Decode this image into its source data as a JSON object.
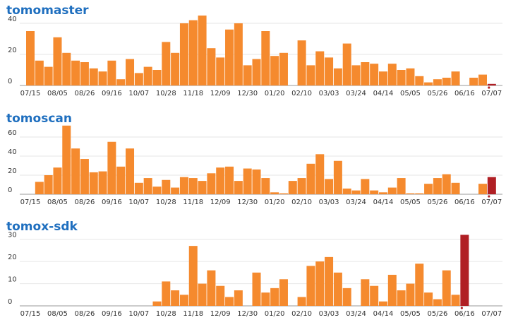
{
  "chart_data": [
    {
      "type": "bar",
      "title": "tomomaster",
      "categories": [
        "07/15",
        null,
        null,
        "08/05",
        null,
        null,
        "08/26",
        null,
        null,
        "09/16",
        null,
        null,
        "10/07",
        null,
        null,
        "10/28",
        null,
        null,
        "11/18",
        null,
        null,
        "12/09",
        null,
        null,
        "12/30",
        null,
        null,
        "01/20",
        null,
        null,
        "02/10",
        null,
        null,
        "03/03",
        null,
        null,
        "03/24",
        null,
        null,
        "04/14",
        null,
        null,
        "05/05",
        null,
        null,
        "05/26",
        null,
        null,
        "06/16",
        null,
        null,
        "07/07"
      ],
      "values": [
        35,
        16,
        12,
        31,
        21,
        16,
        15,
        11,
        9,
        16,
        4,
        17,
        8,
        12,
        10,
        28,
        21,
        40,
        42,
        45,
        24,
        18,
        36,
        40,
        13,
        17,
        35,
        19,
        21,
        0,
        29,
        13,
        22,
        18,
        11,
        27,
        13,
        15,
        14,
        9,
        14,
        10,
        11,
        6,
        2,
        4,
        5,
        9,
        0,
        5,
        7,
        1
      ],
      "color": "#f58a2e",
      "highlight_index": 51,
      "highlight_color": "#b01f24",
      "ylim": [
        0,
        45
      ],
      "yticks": [
        0,
        20,
        40
      ],
      "grid": true
    },
    {
      "type": "bar",
      "title": "tomoscan",
      "categories": [
        "07/15",
        null,
        null,
        "08/05",
        null,
        null,
        "08/26",
        null,
        null,
        "09/16",
        null,
        null,
        "10/07",
        null,
        null,
        "10/28",
        null,
        null,
        "11/18",
        null,
        null,
        "12/09",
        null,
        null,
        "12/30",
        null,
        null,
        "01/20",
        null,
        null,
        "02/10",
        null,
        null,
        "03/03",
        null,
        null,
        "03/24",
        null,
        null,
        "04/14",
        null,
        null,
        "05/05",
        null,
        null,
        "05/26",
        null,
        null,
        "06/16",
        null,
        null,
        "07/07"
      ],
      "values": [
        0,
        13,
        20,
        28,
        72,
        48,
        37,
        23,
        24,
        55,
        29,
        48,
        12,
        17,
        8,
        15,
        7,
        18,
        17,
        14,
        22,
        28,
        29,
        14,
        27,
        26,
        17,
        2,
        1,
        14,
        17,
        32,
        42,
        16,
        35,
        6,
        4,
        16,
        4,
        2,
        7,
        17,
        1,
        1,
        11,
        17,
        21,
        12,
        0,
        0,
        11,
        18
      ],
      "color": "#f58a2e",
      "highlight_index": 51,
      "highlight_color": "#b01f24",
      "ylim": [
        0,
        80
      ],
      "yticks": [
        0,
        20,
        40,
        60
      ],
      "grid": true
    },
    {
      "type": "bar",
      "title": "tomox-sdk",
      "categories": [
        "07/15",
        null,
        null,
        "08/05",
        null,
        null,
        "08/26",
        null,
        null,
        "09/16",
        null,
        null,
        "10/07",
        null,
        null,
        "10/28",
        null,
        null,
        "11/18",
        null,
        null,
        "12/09",
        null,
        null,
        "12/30",
        null,
        null,
        "01/20",
        null,
        null,
        "02/10",
        null,
        null,
        "03/03",
        null,
        null,
        "03/24",
        null,
        null,
        "04/14",
        null,
        null,
        "05/05",
        null,
        null,
        "05/26",
        null,
        null,
        "06/16",
        null,
        null,
        "07/07"
      ],
      "values": [
        0,
        0,
        0,
        0,
        0,
        0,
        0,
        0,
        0,
        0,
        0,
        0,
        0,
        0,
        2,
        11,
        7,
        5,
        27,
        10,
        16,
        9,
        4,
        7,
        0,
        15,
        6,
        8,
        12,
        0,
        4,
        18,
        20,
        22,
        15,
        8,
        0,
        12,
        9,
        2,
        14,
        7,
        10,
        19,
        6,
        3,
        16,
        5,
        32,
        0,
        0,
        0
      ],
      "color": "#f58a2e",
      "highlight_index": 48,
      "highlight_color": "#b01f24",
      "ylim": [
        0,
        35
      ],
      "yticks": [
        0,
        10,
        20,
        30
      ],
      "grid": true
    }
  ]
}
